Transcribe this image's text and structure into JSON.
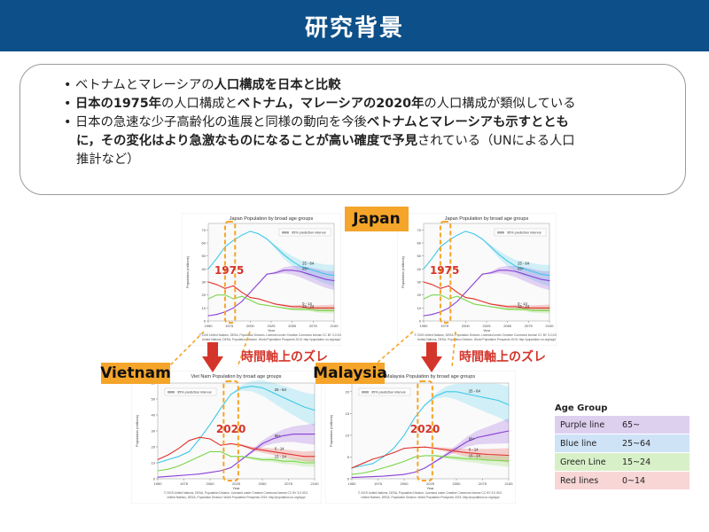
{
  "header": {
    "title": "研究背景"
  },
  "bullets": [
    {
      "runs": [
        {
          "t": "ベトナムとマレーシアの",
          "b": false
        },
        {
          "t": "人口構成を日本と比較",
          "b": true
        }
      ]
    },
    {
      "runs": [
        {
          "t": "日本の1975年",
          "b": true
        },
        {
          "t": "の人口構成と",
          "b": false
        },
        {
          "t": "ベトナム，マレーシアの2020年",
          "b": true
        },
        {
          "t": "の人口構成が類似している",
          "b": false
        }
      ]
    },
    {
      "runs": [
        {
          "t": "日本の急速な少子高齢化の進展と同様の動向を今後",
          "b": false
        },
        {
          "t": "ベトナムとマレーシアも示すととも",
          "b": true
        }
      ]
    },
    {
      "cont": true,
      "runs": [
        {
          "t": "に，その変化はより急激なものになることが高い確度で予見",
          "b": true
        },
        {
          "t": "されている（UNによる人口",
          "b": false
        }
      ]
    },
    {
      "cont": true,
      "runs": [
        {
          "t": "推計など）",
          "b": false
        }
      ]
    }
  ],
  "callouts": {
    "japan": "Japan",
    "vietnam": "Vietnam",
    "malaysia": "Malaysia",
    "year_1975": "1975",
    "year_2020": "2020",
    "axis_shift": "時間軸上のズレ"
  },
  "legend": {
    "title": "Age Group",
    "rows": [
      {
        "name": "Purple line",
        "range": "65~",
        "color": "#ddd0ef"
      },
      {
        "name": "Blue line",
        "range": "25~64",
        "color": "#cfe3f7"
      },
      {
        "name": "Green Line",
        "range": "15~24",
        "color": "#d8f0c8"
      },
      {
        "name": "Red lines",
        "range": "0~14",
        "color": "#f8d6d6"
      }
    ]
  },
  "chart_data": [
    {
      "id": "japan_left",
      "type": "line",
      "title": "Japan  Population by broad age groups",
      "ylabel": "Population (millions)",
      "xlabel": "Year",
      "legend_entry": "95% prediction interval",
      "footer": [
        "© 2019 United Nations, DESA, Population Division. Licensed under Creative Commons license CC BY 3.0 IGO.",
        "United Nations, DESA, Population Division. World Population Prospects 2019. http://population.un.org/wpp/"
      ],
      "xlim": [
        1950,
        2100
      ],
      "ylim": [
        0,
        75
      ],
      "xticks": [
        1950,
        1975,
        2000,
        2025,
        2050,
        2075,
        2100
      ],
      "yticks": [
        0,
        10,
        20,
        30,
        40,
        50,
        60,
        70
      ],
      "series": [
        {
          "name": "25 - 64",
          "color": "#3fc9e8",
          "x": [
            1950,
            1960,
            1970,
            1980,
            1990,
            2000,
            2010,
            2020,
            2030,
            2040,
            2050,
            2060,
            2070,
            2080,
            2090,
            2100
          ],
          "y": [
            40,
            48,
            57,
            62,
            66,
            69,
            67,
            63,
            57,
            51,
            46,
            42,
            40,
            38,
            36,
            35
          ]
        },
        {
          "name": "65+",
          "color": "#8a3fd6",
          "x": [
            1950,
            1960,
            1970,
            1980,
            1990,
            2000,
            2010,
            2020,
            2030,
            2040,
            2050,
            2060,
            2070,
            2080,
            2090,
            2100
          ],
          "y": [
            4,
            5,
            7,
            10,
            15,
            22,
            29,
            36,
            37,
            39,
            39,
            38,
            36,
            34,
            32,
            31
          ]
        },
        {
          "name": "0 - 14",
          "color": "#e0312b",
          "x": [
            1950,
            1960,
            1970,
            1980,
            1990,
            2000,
            2010,
            2020,
            2030,
            2040,
            2050,
            2060,
            2070,
            2080,
            2090,
            2100
          ],
          "y": [
            30,
            28,
            25,
            27,
            22,
            18,
            17,
            15,
            13,
            12,
            11,
            11,
            10,
            10,
            10,
            10
          ]
        },
        {
          "name": "15 - 24",
          "color": "#7ad64a",
          "x": [
            1950,
            1960,
            1970,
            1980,
            1990,
            2000,
            2010,
            2020,
            2030,
            2040,
            2050,
            2060,
            2070,
            2080,
            2090,
            2100
          ],
          "y": [
            17,
            20,
            20,
            17,
            19,
            16,
            13,
            12,
            11,
            10,
            9,
            9,
            9,
            8,
            8,
            8
          ]
        }
      ]
    },
    {
      "id": "japan_right",
      "type": "line",
      "title": "Japan  Population by broad age groups",
      "ylabel": "Population (millions)",
      "xlabel": "Year",
      "legend_entry": "95% prediction interval",
      "footer": [
        "© 2019 United Nations, DESA, Population Division. Licensed under Creative Commons license CC BY 3.0 IGO.",
        "United Nations, DESA, Population Division. World Population Prospects 2019. http://population.un.org/wpp/"
      ],
      "xlim": [
        1950,
        2100
      ],
      "ylim": [
        0,
        75
      ],
      "xticks": [
        1950,
        1975,
        2000,
        2025,
        2050,
        2075,
        2100
      ],
      "yticks": [
        0,
        10,
        20,
        30,
        40,
        50,
        60,
        70
      ],
      "series": [
        {
          "name": "25 - 64",
          "color": "#3fc9e8",
          "x": [
            1950,
            1960,
            1970,
            1980,
            1990,
            2000,
            2010,
            2020,
            2030,
            2040,
            2050,
            2060,
            2070,
            2080,
            2090,
            2100
          ],
          "y": [
            40,
            48,
            57,
            62,
            66,
            69,
            67,
            63,
            57,
            51,
            46,
            42,
            40,
            38,
            36,
            35
          ]
        },
        {
          "name": "65+",
          "color": "#8a3fd6",
          "x": [
            1950,
            1960,
            1970,
            1980,
            1990,
            2000,
            2010,
            2020,
            2030,
            2040,
            2050,
            2060,
            2070,
            2080,
            2090,
            2100
          ],
          "y": [
            4,
            5,
            7,
            10,
            15,
            22,
            29,
            36,
            37,
            39,
            39,
            38,
            36,
            34,
            32,
            31
          ]
        },
        {
          "name": "0 - 14",
          "color": "#e0312b",
          "x": [
            1950,
            1960,
            1970,
            1980,
            1990,
            2000,
            2010,
            2020,
            2030,
            2040,
            2050,
            2060,
            2070,
            2080,
            2090,
            2100
          ],
          "y": [
            30,
            28,
            25,
            27,
            22,
            18,
            17,
            15,
            13,
            12,
            11,
            11,
            10,
            10,
            10,
            10
          ]
        },
        {
          "name": "15 - 24",
          "color": "#7ad64a",
          "x": [
            1950,
            1960,
            1970,
            1980,
            1990,
            2000,
            2010,
            2020,
            2030,
            2040,
            2050,
            2060,
            2070,
            2080,
            2090,
            2100
          ],
          "y": [
            17,
            20,
            20,
            17,
            19,
            16,
            13,
            12,
            11,
            10,
            9,
            9,
            9,
            8,
            8,
            8
          ]
        }
      ]
    },
    {
      "id": "vietnam",
      "type": "line",
      "title": "Viet Nam  Population by broad age groups",
      "ylabel": "Population (millions)",
      "xlabel": "Year",
      "legend_entry": "95% prediction interval",
      "footer": [
        "© 2019 United Nations, DESA, Population Division. Licensed under Creative Commons license CC BY 3.0 IGO.",
        "United Nations, DESA, Population Division. World Population Prospects 2019. http://population.un.org/wpp/"
      ],
      "xlim": [
        1950,
        2100
      ],
      "ylim": [
        0,
        60
      ],
      "xticks": [
        1950,
        1975,
        2000,
        2025,
        2050,
        2075,
        2100
      ],
      "yticks": [
        0,
        10,
        20,
        30,
        40,
        50,
        60
      ],
      "series": [
        {
          "name": "25 - 64",
          "color": "#3fc9e8",
          "x": [
            1950,
            1960,
            1970,
            1980,
            1990,
            2000,
            2010,
            2020,
            2030,
            2040,
            2050,
            2060,
            2070,
            2080,
            2090,
            2100
          ],
          "y": [
            10,
            12,
            14,
            17,
            25,
            34,
            44,
            53,
            57,
            58,
            57,
            54,
            51,
            48,
            45,
            43
          ]
        },
        {
          "name": "65+",
          "color": "#8a3fd6",
          "x": [
            1950,
            1960,
            1970,
            1980,
            1990,
            2000,
            2010,
            2020,
            2030,
            2040,
            2050,
            2060,
            2070,
            2080,
            2090,
            2100
          ],
          "y": [
            1,
            1.5,
            2,
            2.5,
            3,
            4,
            5,
            7,
            12,
            17,
            22,
            25,
            27,
            28,
            28,
            28
          ]
        },
        {
          "name": "0 - 14",
          "color": "#e0312b",
          "x": [
            1950,
            1960,
            1970,
            1980,
            1990,
            2000,
            2010,
            2020,
            2030,
            2040,
            2050,
            2060,
            2070,
            2080,
            2090,
            2100
          ],
          "y": [
            12,
            15,
            19,
            24,
            26,
            25,
            21,
            22,
            21,
            19,
            18,
            17,
            16,
            15,
            14,
            14
          ]
        },
        {
          "name": "15 - 24",
          "color": "#7ad64a",
          "x": [
            1950,
            1960,
            1970,
            1980,
            1990,
            2000,
            2010,
            2020,
            2030,
            2040,
            2050,
            2060,
            2070,
            2080,
            2090,
            2100
          ],
          "y": [
            5,
            6,
            8,
            11,
            14,
            17,
            17,
            14,
            14,
            13,
            12,
            12,
            11,
            11,
            10,
            10
          ]
        }
      ]
    },
    {
      "id": "malaysia",
      "type": "line",
      "title": "Malaysia  Population by broad age groups",
      "ylabel": "Population (millions)",
      "xlabel": "Year",
      "legend_entry": "95% prediction interval",
      "footer": [
        "© 2019 United Nations, DESA, Population Division. Licensed under Creative Commons license CC BY 3.0 IGO.",
        "United Nations, DESA, Population Division. World Population Prospects 2019. http://population.un.org/wpp/"
      ],
      "xlim": [
        1950,
        2100
      ],
      "ylim": [
        0,
        22
      ],
      "xticks": [
        1950,
        1975,
        2000,
        2025,
        2050,
        2075,
        2100
      ],
      "yticks": [
        0,
        5,
        10,
        15,
        20
      ],
      "series": [
        {
          "name": "25 - 64",
          "color": "#3fc9e8",
          "x": [
            1950,
            1960,
            1970,
            1980,
            1990,
            2000,
            2010,
            2020,
            2030,
            2040,
            2050,
            2060,
            2070,
            2080,
            2090,
            2100
          ],
          "y": [
            2.5,
            3,
            3.5,
            5,
            7,
            10,
            14,
            17,
            19,
            20,
            20,
            19.5,
            19,
            18.5,
            18,
            17
          ]
        },
        {
          "name": "65+",
          "color": "#8a3fd6",
          "x": [
            1950,
            1960,
            1970,
            1980,
            1990,
            2000,
            2010,
            2020,
            2030,
            2040,
            2050,
            2060,
            2070,
            2080,
            2090,
            2100
          ],
          "y": [
            0.3,
            0.4,
            0.5,
            0.6,
            0.8,
            1,
            1.5,
            2.5,
            4,
            5.5,
            7,
            8.5,
            9.5,
            10,
            10.5,
            11
          ]
        },
        {
          "name": "0 - 14",
          "color": "#e0312b",
          "x": [
            1950,
            1960,
            1970,
            1980,
            1990,
            2000,
            2010,
            2020,
            2030,
            2040,
            2050,
            2060,
            2070,
            2080,
            2090,
            2100
          ],
          "y": [
            2.5,
            3.5,
            4.5,
            5.2,
            6,
            7,
            7.2,
            7.3,
            7,
            6.7,
            6.3,
            6,
            5.8,
            5.6,
            5.5,
            5.4
          ]
        },
        {
          "name": "15 - 24",
          "color": "#7ad64a",
          "x": [
            1950,
            1960,
            1970,
            1980,
            1990,
            2000,
            2010,
            2020,
            2030,
            2040,
            2050,
            2060,
            2070,
            2080,
            2090,
            2100
          ],
          "y": [
            1,
            1.3,
            1.8,
            2.5,
            3.2,
            4,
            5,
            5.3,
            5.3,
            5,
            4.8,
            4.6,
            4.5,
            4.3,
            4.2,
            4.1
          ]
        }
      ]
    }
  ]
}
